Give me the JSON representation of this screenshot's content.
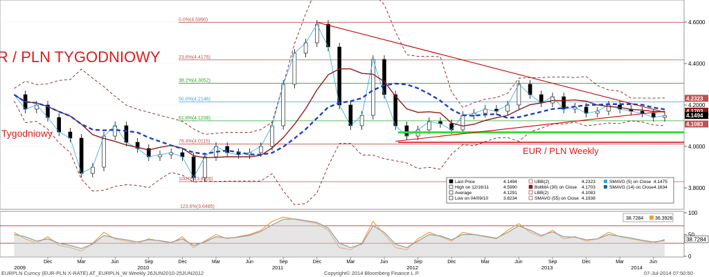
{
  "chart_data": {
    "type": "line",
    "title_left": "R / PLN TYGODNIOWY",
    "title_left_sub": "Tygodniowy",
    "title_right": "EUR / PLN Weekly",
    "x_year_labels": [
      "2009",
      "2010",
      "2011",
      "2012",
      "2013",
      "2014"
    ],
    "x_month_labels": [
      "Dec",
      "Mar",
      "Jun",
      "Sep",
      "Dec",
      "Mar",
      "Jun",
      "Sep",
      "Dec",
      "Mar",
      "Jun",
      "Sep",
      "Dec",
      "Mar",
      "Jun",
      "Sep",
      "Dec",
      "Mar",
      "Jun",
      "Sep",
      "Dec",
      "Mar",
      "Jun"
    ],
    "ylim": [
      3.7,
      4.7
    ],
    "y_ticks": [
      "4.6000",
      "4.4000",
      "4.2000",
      "4.0000",
      "3.8000"
    ],
    "price_tags": [
      {
        "label": "4.2323",
        "value": 4.2323,
        "color": "#c0504d"
      },
      {
        "label": "4.1703",
        "value": 4.1703,
        "color": "#8b1a1a"
      },
      {
        "label": "4.1494",
        "value": 4.1494,
        "color": "#000000"
      },
      {
        "label": "4.1083",
        "value": 4.1083,
        "color": "#c0504d"
      }
    ],
    "fib_levels": [
      {
        "label": "0.0%(4.5990)",
        "value": 4.599,
        "color": "#c0504d"
      },
      {
        "label": "23.6%(4.4175)",
        "value": 4.4175,
        "color": "#c0504d"
      },
      {
        "label": "38.2%(4.3052)",
        "value": 4.3052,
        "color": "#2ca02c"
      },
      {
        "label": "50.0%(4.2146)",
        "value": 4.2146,
        "color": "#29a9e0"
      },
      {
        "label": "61.8%(4.1238)",
        "value": 4.1238,
        "color": "#2ca02c"
      },
      {
        "label": "76.4%(4.0115)",
        "value": 4.0115,
        "color": "#c0504d"
      },
      {
        "label": "100.0%(3.8300)",
        "value": 3.83,
        "color": "#c0504d"
      },
      {
        "label": "123.6%(3.6485)",
        "value": 3.6485,
        "color": "#c0504d"
      }
    ],
    "horizontal_lines": [
      {
        "name": "support green",
        "value": 4.068,
        "color": "#33dd33"
      },
      {
        "name": "support red",
        "value": 4.02,
        "color": "#cc0000"
      }
    ],
    "trendlines": [
      {
        "from": [
          "2011-12",
          4.599
        ],
        "to": [
          "2014-07",
          4.165
        ]
      },
      {
        "from": [
          "2012-07",
          4.025
        ],
        "to": [
          "2014-07",
          4.17
        ]
      }
    ],
    "series": [
      {
        "name": "Last Price",
        "color": "#000000",
        "x": [
          "2009-09",
          "2009-10",
          "2009-11",
          "2009-12",
          "2010-01",
          "2010-02",
          "2010-03",
          "2010-04",
          "2010-05",
          "2010-06",
          "2010-07",
          "2010-08",
          "2010-09",
          "2010-10",
          "2010-11",
          "2010-12",
          "2011-01",
          "2011-02",
          "2011-03",
          "2011-04",
          "2011-05",
          "2011-06",
          "2011-07",
          "2011-08",
          "2011-09",
          "2011-10",
          "2011-11",
          "2011-12",
          "2012-01",
          "2012-02",
          "2012-03",
          "2012-04",
          "2012-05",
          "2012-06",
          "2012-07",
          "2012-08",
          "2012-09",
          "2012-10",
          "2012-11",
          "2012-12",
          "2013-01",
          "2013-02",
          "2013-03",
          "2013-04",
          "2013-05",
          "2013-06",
          "2013-07",
          "2013-08",
          "2013-09",
          "2013-10",
          "2013-11",
          "2013-12",
          "2014-01",
          "2014-02",
          "2014-03",
          "2014-04",
          "2014-05",
          "2014-06",
          "2014-07"
        ],
        "values": [
          4.25,
          4.18,
          4.2,
          4.14,
          4.07,
          4.04,
          3.87,
          3.9,
          4.05,
          4.1,
          4.02,
          3.99,
          3.95,
          3.96,
          3.97,
          3.95,
          3.85,
          3.95,
          4.0,
          3.97,
          3.96,
          3.97,
          4.0,
          4.1,
          4.3,
          4.45,
          4.5,
          4.59,
          4.48,
          4.2,
          4.1,
          4.15,
          4.42,
          4.25,
          4.1,
          4.05,
          4.08,
          4.12,
          4.11,
          4.08,
          4.15,
          4.16,
          4.18,
          4.17,
          4.2,
          4.3,
          4.25,
          4.21,
          4.24,
          4.18,
          4.19,
          4.16,
          4.17,
          4.2,
          4.18,
          4.17,
          4.16,
          4.14,
          4.149
        ]
      },
      {
        "name": "SMAVG (5) on Close",
        "value": "4.1475",
        "color": "#29a9e0"
      },
      {
        "name": "SMAVG (14) on Close",
        "value": "4.1634",
        "color": "#7fb3d5"
      },
      {
        "name": "BollMA (30) on Close",
        "value": "4.1703",
        "color": "#8b1a1a"
      },
      {
        "name": "SMAVG (55) on Close",
        "value": "4.1938",
        "color": "#1f3fbf"
      },
      {
        "name": "UBB(2)",
        "value": "4.2323",
        "color": "#8b1a1a"
      },
      {
        "name": "LBB(2)",
        "value": "4.1083",
        "color": "#8b1a1a"
      }
    ],
    "legend": {
      "rows": [
        {
          "label": "Last Price",
          "value": "4.1494"
        },
        {
          "label": "High on 12/16/11",
          "value": "4.5990"
        },
        {
          "label": "Average",
          "value": "4.1291"
        },
        {
          "label": "Low on 04/09/10",
          "value": "3.8234"
        }
      ],
      "mid": [
        {
          "label": "UBB(2)",
          "value": "4.2323"
        },
        {
          "label": "BollMA (30) on Close",
          "value": "4.1703"
        },
        {
          "label": "LBB(2)",
          "value": "4.1083"
        },
        {
          "label": "SMAVG (55) on Close",
          "value": "4.1938"
        }
      ],
      "right": [
        {
          "label": "SMAVG (5) on Close",
          "value": "4.1475"
        },
        {
          "label": "SMAVG (14) on Close",
          "value": "4.1634"
        }
      ]
    },
    "lower_panel": {
      "ylim": [
        0,
        100
      ],
      "y_ticks": [
        "100",
        "50",
        "0"
      ],
      "levels": [
        70,
        30
      ],
      "values_box": [
        "38.7284",
        "36.3926"
      ],
      "tag": "38.7284",
      "series": [
        {
          "name": "fast",
          "color": "#e8a040",
          "values": [
            55,
            40,
            30,
            45,
            25,
            20,
            12,
            30,
            55,
            40,
            35,
            30,
            40,
            35,
            30,
            45,
            20,
            35,
            50,
            40,
            45,
            50,
            60,
            80,
            90,
            85,
            80,
            75,
            60,
            20,
            15,
            30,
            80,
            50,
            20,
            15,
            40,
            55,
            45,
            35,
            55,
            50,
            45,
            40,
            60,
            75,
            55,
            45,
            60,
            40,
            45,
            35,
            40,
            55,
            45,
            40,
            35,
            30,
            38.7
          ]
        },
        {
          "name": "slow",
          "color": "#9b9b9b",
          "values": [
            50,
            45,
            35,
            40,
            30,
            25,
            18,
            28,
            48,
            42,
            38,
            33,
            38,
            36,
            32,
            40,
            25,
            33,
            45,
            42,
            44,
            48,
            57,
            72,
            85,
            86,
            82,
            78,
            65,
            30,
            20,
            28,
            70,
            55,
            28,
            20,
            35,
            50,
            47,
            38,
            50,
            50,
            46,
            42,
            55,
            70,
            60,
            48,
            56,
            45,
            44,
            38,
            40,
            50,
            46,
            42,
            37,
            33,
            36.4
          ]
        }
      ]
    },
    "footer": {
      "left": "EURPLN Curncy (EUR-PLN X-RATE) AT_EURPLN_W  Weekly 26JUN2010-25JUN2012",
      "center": "Copyright© 2014 Bloomberg Finance L.P.",
      "right": "07-Jul-2014 07:50:50"
    }
  }
}
